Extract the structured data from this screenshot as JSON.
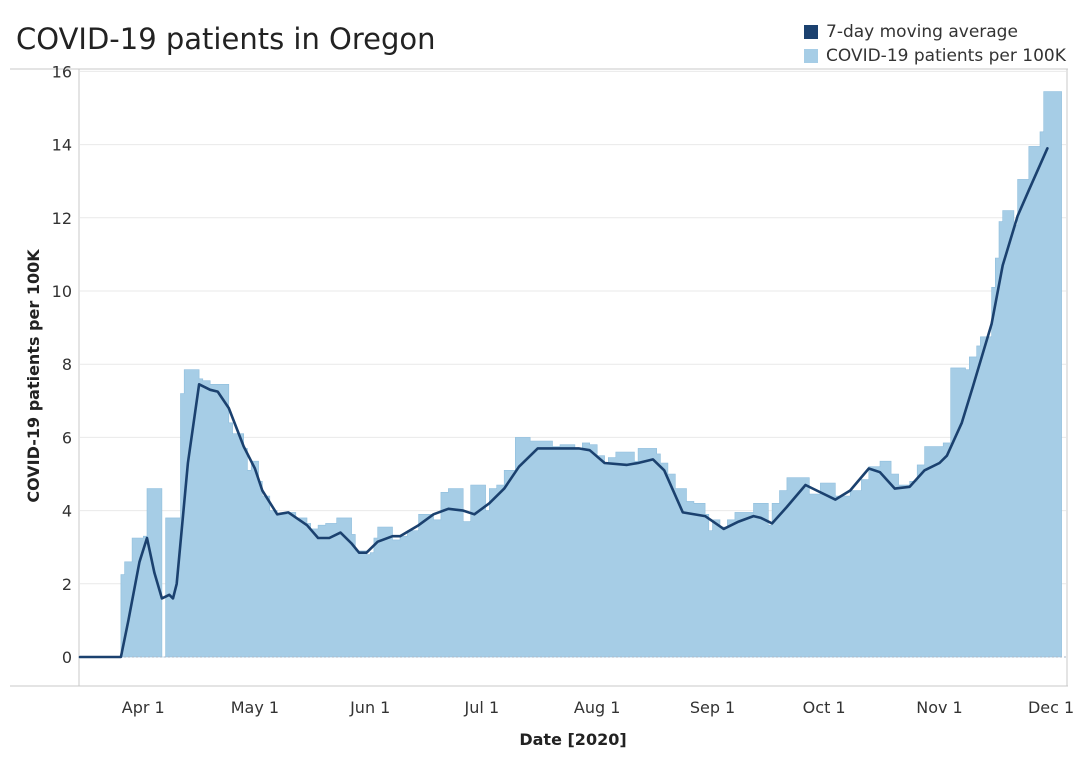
{
  "title": "COVID-19 patients in Oregon",
  "colors": {
    "bar": "#a6cde6",
    "bar_edge": "#8fbedd",
    "line": "#1b416f",
    "grid": "#e9e9e9",
    "axis": "#bcbcbc"
  },
  "legend": [
    {
      "label": "7-day moving average",
      "color": "#1b416f"
    },
    {
      "label": "COVID-19 patients per 100K",
      "color": "#a6cde6"
    }
  ],
  "chart_data": {
    "type": "area",
    "title": "COVID-19 patients in Oregon",
    "xlabel": "Date [2020]",
    "ylabel": "COVID-19 patients per 100K",
    "ylim": [
      0,
      16
    ],
    "yticks": [
      0,
      2,
      4,
      6,
      8,
      10,
      12,
      14,
      16
    ],
    "xlim": [
      "2020-03-15",
      "2020-12-05"
    ],
    "xticks": [
      {
        "date": "2020-04-01",
        "label": "Apr 1"
      },
      {
        "date": "2020-05-01",
        "label": "May 1"
      },
      {
        "date": "2020-06-01",
        "label": "Jun 1"
      },
      {
        "date": "2020-07-01",
        "label": "Jul 1"
      },
      {
        "date": "2020-08-01",
        "label": "Aug 1"
      },
      {
        "date": "2020-09-01",
        "label": "Sep 1"
      },
      {
        "date": "2020-10-01",
        "label": "Oct 1"
      },
      {
        "date": "2020-11-01",
        "label": "Nov 1"
      },
      {
        "date": "2020-12-01",
        "label": "Dec 1"
      }
    ],
    "grid": true,
    "legend_position": "top-right",
    "series": [
      {
        "name": "COVID-19 patients per 100K",
        "kind": "step-area",
        "points": [
          [
            "2020-03-15",
            0
          ],
          [
            "2020-03-26",
            2.25
          ],
          [
            "2020-03-27",
            2.6
          ],
          [
            "2020-03-29",
            3.25
          ],
          [
            "2020-04-01",
            3.3
          ],
          [
            "2020-04-02",
            4.6
          ],
          [
            "2020-04-06",
            0
          ],
          [
            "2020-04-07",
            3.8
          ],
          [
            "2020-04-11",
            7.2
          ],
          [
            "2020-04-12",
            7.85
          ],
          [
            "2020-04-16",
            7.6
          ],
          [
            "2020-04-17",
            7.55
          ],
          [
            "2020-04-19",
            7.45
          ],
          [
            "2020-04-21",
            7.45
          ],
          [
            "2020-04-24",
            6.4
          ],
          [
            "2020-04-25",
            6.1
          ],
          [
            "2020-04-28",
            5.7
          ],
          [
            "2020-04-29",
            5.1
          ],
          [
            "2020-04-30",
            5.35
          ],
          [
            "2020-05-01",
            5.35
          ],
          [
            "2020-05-02",
            4.8
          ],
          [
            "2020-05-03",
            4.4
          ],
          [
            "2020-05-05",
            4.0
          ],
          [
            "2020-05-07",
            3.9
          ],
          [
            "2020-05-10",
            3.95
          ],
          [
            "2020-05-12",
            3.8
          ],
          [
            "2020-05-15",
            3.65
          ],
          [
            "2020-05-16",
            3.5
          ],
          [
            "2020-05-18",
            3.6
          ],
          [
            "2020-05-20",
            3.65
          ],
          [
            "2020-05-23",
            3.8
          ],
          [
            "2020-05-27",
            3.35
          ],
          [
            "2020-05-28",
            2.9
          ],
          [
            "2020-05-31",
            2.8
          ],
          [
            "2020-06-01",
            2.85
          ],
          [
            "2020-06-02",
            3.25
          ],
          [
            "2020-06-03",
            3.55
          ],
          [
            "2020-06-07",
            3.2
          ],
          [
            "2020-06-09",
            3.3
          ],
          [
            "2020-06-11",
            3.45
          ],
          [
            "2020-06-14",
            3.9
          ],
          [
            "2020-06-18",
            3.75
          ],
          [
            "2020-06-20",
            4.5
          ],
          [
            "2020-06-22",
            4.6
          ],
          [
            "2020-06-26",
            3.7
          ],
          [
            "2020-06-28",
            4.7
          ],
          [
            "2020-07-02",
            4.0
          ],
          [
            "2020-07-03",
            4.6
          ],
          [
            "2020-07-05",
            4.7
          ],
          [
            "2020-07-07",
            5.1
          ],
          [
            "2020-07-10",
            6.0
          ],
          [
            "2020-07-14",
            5.9
          ],
          [
            "2020-07-20",
            5.75
          ],
          [
            "2020-07-22",
            5.8
          ],
          [
            "2020-07-26",
            5.7
          ],
          [
            "2020-07-28",
            5.85
          ],
          [
            "2020-07-30",
            5.8
          ],
          [
            "2020-08-01",
            5.5
          ],
          [
            "2020-08-03",
            5.3
          ],
          [
            "2020-08-04",
            5.45
          ],
          [
            "2020-08-06",
            5.6
          ],
          [
            "2020-08-11",
            5.35
          ],
          [
            "2020-08-12",
            5.7
          ],
          [
            "2020-08-17",
            5.55
          ],
          [
            "2020-08-18",
            5.3
          ],
          [
            "2020-08-20",
            5.0
          ],
          [
            "2020-08-22",
            4.6
          ],
          [
            "2020-08-25",
            4.25
          ],
          [
            "2020-08-27",
            4.2
          ],
          [
            "2020-08-30",
            3.9
          ],
          [
            "2020-08-31",
            3.45
          ],
          [
            "2020-09-01",
            3.75
          ],
          [
            "2020-09-03",
            3.55
          ],
          [
            "2020-09-05",
            3.75
          ],
          [
            "2020-09-07",
            3.95
          ],
          [
            "2020-09-12",
            4.2
          ],
          [
            "2020-09-16",
            3.6
          ],
          [
            "2020-09-17",
            4.2
          ],
          [
            "2020-09-19",
            4.55
          ],
          [
            "2020-09-21",
            4.9
          ],
          [
            "2020-09-27",
            4.45
          ],
          [
            "2020-09-30",
            4.75
          ],
          [
            "2020-10-04",
            4.4
          ],
          [
            "2020-10-08",
            4.55
          ],
          [
            "2020-10-11",
            4.85
          ],
          [
            "2020-10-13",
            5.2
          ],
          [
            "2020-10-16",
            5.35
          ],
          [
            "2020-10-19",
            5.0
          ],
          [
            "2020-10-21",
            4.7
          ],
          [
            "2020-10-24",
            4.8
          ],
          [
            "2020-10-26",
            5.25
          ],
          [
            "2020-10-28",
            5.75
          ],
          [
            "2020-11-02",
            5.85
          ],
          [
            "2020-11-04",
            7.9
          ],
          [
            "2020-11-08",
            7.85
          ],
          [
            "2020-11-09",
            8.2
          ],
          [
            "2020-11-11",
            8.5
          ],
          [
            "2020-11-12",
            8.75
          ],
          [
            "2020-11-15",
            10.1
          ],
          [
            "2020-11-16",
            10.9
          ],
          [
            "2020-11-17",
            11.9
          ],
          [
            "2020-11-18",
            12.2
          ],
          [
            "2020-11-21",
            11.8
          ],
          [
            "2020-11-22",
            13.05
          ],
          [
            "2020-11-25",
            13.95
          ],
          [
            "2020-11-28",
            14.35
          ],
          [
            "2020-11-29",
            15.45
          ],
          [
            "2020-12-03",
            15.45
          ]
        ]
      },
      {
        "name": "7-day moving average",
        "kind": "line",
        "points": [
          [
            "2020-03-15",
            0
          ],
          [
            "2020-03-26",
            0
          ],
          [
            "2020-03-28",
            1.0
          ],
          [
            "2020-03-31",
            2.6
          ],
          [
            "2020-04-02",
            3.25
          ],
          [
            "2020-04-04",
            2.3
          ],
          [
            "2020-04-06",
            1.6
          ],
          [
            "2020-04-08",
            1.7
          ],
          [
            "2020-04-09",
            1.6
          ],
          [
            "2020-04-10",
            2.0
          ],
          [
            "2020-04-13",
            5.3
          ],
          [
            "2020-04-16",
            7.45
          ],
          [
            "2020-04-19",
            7.3
          ],
          [
            "2020-04-21",
            7.25
          ],
          [
            "2020-04-24",
            6.8
          ],
          [
            "2020-04-28",
            5.75
          ],
          [
            "2020-05-01",
            5.15
          ],
          [
            "2020-05-03",
            4.55
          ],
          [
            "2020-05-07",
            3.9
          ],
          [
            "2020-05-10",
            3.95
          ],
          [
            "2020-05-15",
            3.6
          ],
          [
            "2020-05-18",
            3.25
          ],
          [
            "2020-05-21",
            3.25
          ],
          [
            "2020-05-24",
            3.4
          ],
          [
            "2020-05-27",
            3.1
          ],
          [
            "2020-05-29",
            2.85
          ],
          [
            "2020-05-31",
            2.85
          ],
          [
            "2020-06-03",
            3.15
          ],
          [
            "2020-06-07",
            3.3
          ],
          [
            "2020-06-09",
            3.3
          ],
          [
            "2020-06-14",
            3.6
          ],
          [
            "2020-06-18",
            3.9
          ],
          [
            "2020-06-22",
            4.05
          ],
          [
            "2020-06-26",
            4.0
          ],
          [
            "2020-06-29",
            3.9
          ],
          [
            "2020-07-03",
            4.2
          ],
          [
            "2020-07-07",
            4.6
          ],
          [
            "2020-07-11",
            5.2
          ],
          [
            "2020-07-16",
            5.7
          ],
          [
            "2020-07-20",
            5.7
          ],
          [
            "2020-07-27",
            5.7
          ],
          [
            "2020-07-30",
            5.65
          ],
          [
            "2020-08-03",
            5.3
          ],
          [
            "2020-08-09",
            5.25
          ],
          [
            "2020-08-12",
            5.3
          ],
          [
            "2020-08-16",
            5.4
          ],
          [
            "2020-08-19",
            5.1
          ],
          [
            "2020-08-24",
            3.95
          ],
          [
            "2020-08-30",
            3.85
          ],
          [
            "2020-09-04",
            3.5
          ],
          [
            "2020-09-08",
            3.7
          ],
          [
            "2020-09-12",
            3.85
          ],
          [
            "2020-09-14",
            3.8
          ],
          [
            "2020-09-17",
            3.65
          ],
          [
            "2020-09-21",
            4.1
          ],
          [
            "2020-09-26",
            4.7
          ],
          [
            "2020-09-29",
            4.55
          ],
          [
            "2020-10-04",
            4.3
          ],
          [
            "2020-10-08",
            4.55
          ],
          [
            "2020-10-13",
            5.15
          ],
          [
            "2020-10-16",
            5.05
          ],
          [
            "2020-10-20",
            4.6
          ],
          [
            "2020-10-24",
            4.65
          ],
          [
            "2020-10-28",
            5.1
          ],
          [
            "2020-11-01",
            5.3
          ],
          [
            "2020-11-03",
            5.5
          ],
          [
            "2020-11-07",
            6.4
          ],
          [
            "2020-11-10",
            7.4
          ],
          [
            "2020-11-15",
            9.1
          ],
          [
            "2020-11-18",
            10.7
          ],
          [
            "2020-11-22",
            12.05
          ],
          [
            "2020-11-25",
            12.75
          ],
          [
            "2020-11-30",
            13.9
          ]
        ]
      }
    ]
  }
}
